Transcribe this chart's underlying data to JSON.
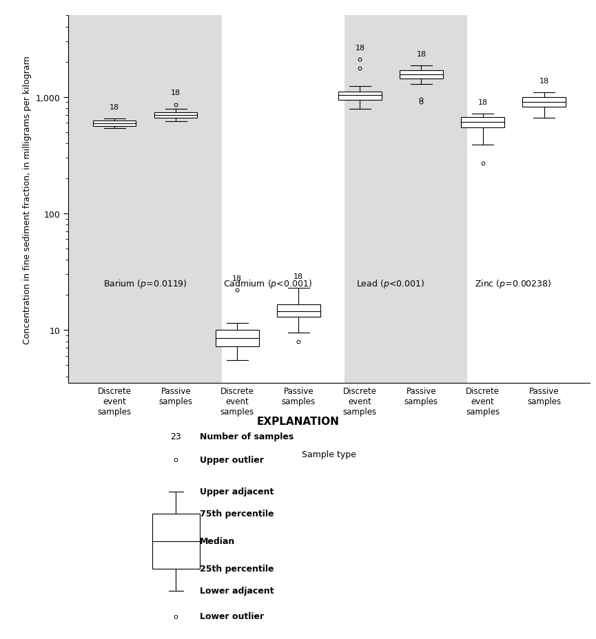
{
  "elements": [
    "Barium",
    "Cadmium",
    "Lead",
    "Zinc"
  ],
  "p_values": [
    "=0.0119",
    "<0.001",
    "<0.001",
    "=0.00238"
  ],
  "n_samples": 18,
  "background_colors": [
    "#dcdcdc",
    "#ffffff",
    "#dcdcdc",
    "#ffffff"
  ],
  "ylabel": "Concentration in fine sediment fraction, in milligrams per kilogram",
  "xlabel": "Sample type",
  "ylim_log": [
    3.5,
    5000
  ],
  "boxes": [
    {
      "element": "Barium",
      "discrete": {
        "whisker_low": 540,
        "q1": 565,
        "median": 595,
        "q3": 625,
        "whisker_high": 650,
        "outliers_high": [],
        "outliers_low": []
      },
      "passive": {
        "whisker_low": 620,
        "q1": 660,
        "median": 695,
        "q3": 740,
        "whisker_high": 790,
        "outliers_high": [
          860
        ],
        "outliers_low": []
      }
    },
    {
      "element": "Cadmium",
      "discrete": {
        "whisker_low": 5.5,
        "q1": 7.2,
        "median": 8.5,
        "q3": 10.0,
        "whisker_high": 11.5,
        "outliers_high": [
          22
        ],
        "outliers_low": []
      },
      "passive": {
        "whisker_low": 9.5,
        "q1": 13.0,
        "median": 14.5,
        "q3": 16.5,
        "whisker_high": 23.0,
        "outliers_high": [],
        "outliers_low": [
          8.0
        ]
      }
    },
    {
      "element": "Lead",
      "discrete": {
        "whisker_low": 790,
        "q1": 940,
        "median": 1030,
        "q3": 1110,
        "whisker_high": 1230,
        "outliers_high": [
          2100,
          1750
        ],
        "outliers_low": []
      },
      "passive": {
        "whisker_low": 1280,
        "q1": 1430,
        "median": 1560,
        "q3": 1700,
        "whisker_high": 1850,
        "outliers_high": [],
        "outliers_low": [
          900,
          950
        ]
      }
    },
    {
      "element": "Zinc",
      "discrete": {
        "whisker_low": 390,
        "q1": 545,
        "median": 610,
        "q3": 670,
        "whisker_high": 720,
        "outliers_high": [],
        "outliers_low": [
          270
        ]
      },
      "passive": {
        "whisker_low": 660,
        "q1": 820,
        "median": 900,
        "q3": 1000,
        "whisker_high": 1090,
        "outliers_high": [],
        "outliers_low": []
      }
    }
  ]
}
